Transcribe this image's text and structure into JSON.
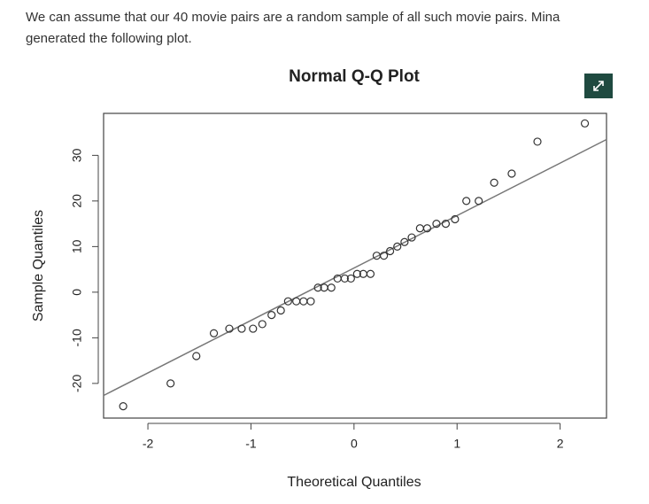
{
  "intro": {
    "lines": [
      "We can assume that our 40 movie pairs are a random sample of all such movie pairs.  Mina",
      "generated the following plot."
    ]
  },
  "chart_data": {
    "type": "scatter",
    "title": "Normal Q-Q Plot",
    "x_label": "Theoretical Quantiles",
    "y_label": "Sample Quantiles",
    "x": [
      -2.24,
      -1.78,
      -1.53,
      -1.36,
      -1.21,
      -1.09,
      -0.98,
      -0.89,
      -0.8,
      -0.71,
      -0.64,
      -0.56,
      -0.49,
      -0.42,
      -0.35,
      -0.29,
      -0.22,
      -0.16,
      -0.09,
      -0.03,
      0.03,
      0.09,
      0.16,
      0.22,
      0.29,
      0.35,
      0.42,
      0.49,
      0.56,
      0.64,
      0.71,
      0.8,
      0.89,
      0.98,
      1.09,
      1.21,
      1.36,
      1.53,
      1.78,
      2.24
    ],
    "values": [
      -25,
      -20,
      -14,
      -9,
      -8,
      -8,
      -8,
      -7,
      -5,
      -4,
      -2,
      -2,
      -2,
      -2,
      1,
      1,
      1,
      3,
      3,
      3,
      4,
      4,
      4,
      8,
      8,
      9,
      10,
      11,
      12,
      14,
      14,
      15,
      15,
      16,
      20,
      20,
      24,
      26,
      33,
      37
    ],
    "color": "#333333",
    "reference_line": {
      "slope": 11.5,
      "intercept": 5.3,
      "color": "#777777"
    },
    "xlim": [
      -2.43,
      2.45
    ],
    "ylim": [
      -27.6,
      39.2
    ],
    "xticks": [
      -2,
      -1,
      0,
      1,
      2
    ],
    "yticks": [
      -20,
      -10,
      0,
      10,
      20,
      30
    ]
  }
}
